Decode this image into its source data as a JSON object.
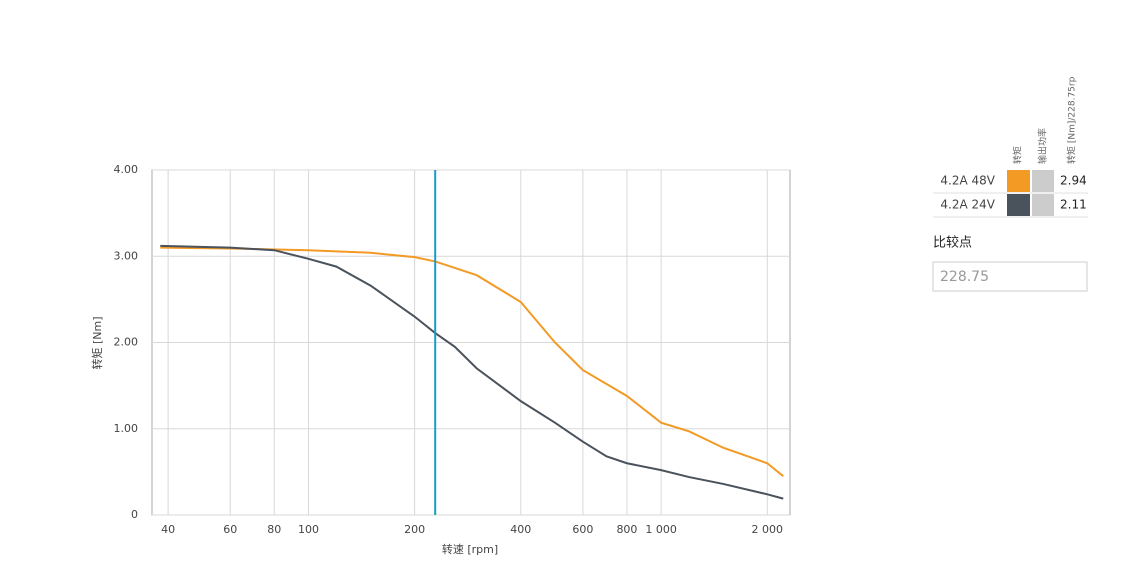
{
  "chart_data": {
    "type": "line",
    "x_label": "转速 [rpm]",
    "y_label": "转矩 [Nm]",
    "log_x": true,
    "grid": true,
    "xlim": [
      36,
      2320
    ],
    "ylim": [
      0,
      4
    ],
    "xticks": [
      40,
      60,
      80,
      100,
      200,
      400,
      600,
      800,
      {
        "value": 1000,
        "label": "1 000"
      },
      {
        "value": 2000,
        "label": "2 000"
      }
    ],
    "yticks": [
      0,
      {
        "value": 1,
        "label": "1.00"
      },
      {
        "value": 2,
        "label": "2.00"
      },
      {
        "value": 3,
        "label": "3.00"
      },
      {
        "value": 4,
        "label": "4.00"
      }
    ],
    "marker_x": 228.75,
    "marker_color": "#1a9bc9",
    "series": [
      {
        "name": "4.2A  48V",
        "color": "#f39a24",
        "x": [
          38,
          60,
          100,
          150,
          200,
          228.75,
          300,
          400,
          500,
          600,
          800,
          1000,
          1200,
          1500,
          2000,
          2220
        ],
        "values": [
          3.1,
          3.09,
          3.07,
          3.04,
          2.99,
          2.94,
          2.78,
          2.47,
          2.0,
          1.68,
          1.38,
          1.07,
          0.97,
          0.78,
          0.6,
          0.45
        ],
        "value_at_marker": 2.94
      },
      {
        "name": "4.2A  24V",
        "color": "#4a525b",
        "x": [
          38,
          60,
          80,
          100,
          120,
          150,
          200,
          228.75,
          260,
          300,
          400,
          500,
          600,
          700,
          800,
          1000,
          1200,
          1500,
          2000,
          2220
        ],
        "values": [
          3.12,
          3.1,
          3.07,
          2.97,
          2.88,
          2.66,
          2.3,
          2.11,
          1.95,
          1.7,
          1.32,
          1.07,
          0.85,
          0.68,
          0.6,
          0.52,
          0.44,
          0.36,
          0.24,
          0.19
        ],
        "value_at_marker": 2.11
      }
    ]
  },
  "panel": {
    "headers": [
      "转矩",
      "输出功率",
      "转矩 [Nm]/228.75rp"
    ],
    "power_color": "#cccccc",
    "compare_label": "比较点"
  }
}
